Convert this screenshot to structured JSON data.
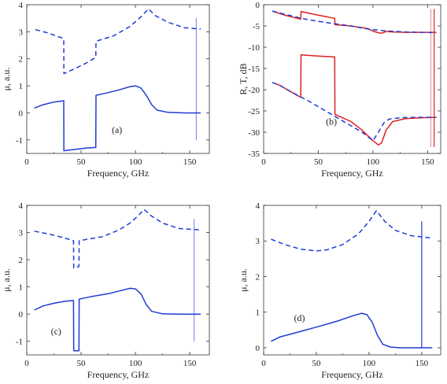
{
  "chart_data": [
    {
      "id": "a",
      "type": "line",
      "panel_label": "(a)",
      "xlabel": "Frequency, GHz",
      "ylabel": "μ, a.u.",
      "xlim": [
        0,
        168
      ],
      "ylim": [
        -1.5,
        4
      ],
      "xticks": [
        0,
        50,
        100,
        150
      ],
      "yticks": [
        -1,
        0,
        1,
        2,
        3,
        4
      ],
      "label_at": [
        83,
        -0.75
      ],
      "series": [
        {
          "color": "#1f3bd4",
          "dash": true,
          "x": [
            8,
            20,
            34,
            34.2,
            45,
            55,
            63.5,
            63.7,
            80,
            95,
            105,
            112,
            118,
            130,
            145,
            160
          ],
          "y": [
            3.08,
            2.95,
            2.75,
            1.45,
            1.65,
            1.85,
            2.05,
            2.65,
            2.85,
            3.2,
            3.55,
            3.85,
            3.6,
            3.35,
            3.15,
            3.1
          ]
        },
        {
          "color": "#1f3bd4",
          "dash": false,
          "x": [
            7,
            15,
            25,
            34,
            34.2,
            45,
            55,
            63.5,
            63.7,
            75,
            85,
            95,
            100,
            105,
            110,
            115,
            120,
            130,
            145,
            160
          ],
          "y": [
            0.18,
            0.3,
            0.4,
            0.45,
            -1.4,
            -1.35,
            -1.3,
            -1.28,
            0.65,
            0.75,
            0.85,
            0.97,
            1.0,
            0.92,
            0.65,
            0.3,
            0.1,
            0.02,
            0.0,
            0.0
          ]
        }
      ],
      "vlines": [
        {
          "x": 156,
          "y0": -1.0,
          "y1": 3.5,
          "color": "#8894e6"
        }
      ]
    },
    {
      "id": "b",
      "type": "line",
      "panel_label": "(b)",
      "xlabel": "Frequency, GHz",
      "ylabel": "R, T, dB",
      "xlim": [
        0,
        162
      ],
      "ylim": [
        -35,
        0
      ],
      "xticks": [
        0,
        50,
        100,
        150
      ],
      "yticks": [
        -35,
        -30,
        -25,
        -20,
        -15,
        -10,
        -5,
        0
      ],
      "label_at": [
        62,
        -28.2
      ],
      "series": [
        {
          "color": "#e02020",
          "dash": false,
          "x": [
            8,
            20,
            34,
            34.2,
            45,
            55,
            65,
            65.2,
            80,
            95,
            100,
            105,
            108,
            112,
            118,
            130,
            145,
            158
          ],
          "y": [
            -1.5,
            -2.5,
            -3.4,
            -1.6,
            -2.2,
            -2.7,
            -3.2,
            -4.7,
            -5.0,
            -5.6,
            -6.2,
            -6.6,
            -6.7,
            -6.3,
            -6.4,
            -6.5,
            -6.5,
            -6.5
          ]
        },
        {
          "color": "#1f3bd4",
          "dash": true,
          "x": [
            8,
            20,
            40,
            60,
            80,
            95,
            105,
            115,
            130,
            145,
            158
          ],
          "y": [
            -1.5,
            -2.3,
            -3.5,
            -4.3,
            -5.0,
            -5.7,
            -6.0,
            -6.2,
            -6.4,
            -6.5,
            -6.6
          ]
        },
        {
          "color": "#e02020",
          "dash": false,
          "x": [
            8,
            15,
            25,
            34,
            34.2,
            50,
            65,
            65.2,
            80,
            90,
            100,
            105,
            108,
            112,
            118,
            130,
            145,
            158
          ],
          "y": [
            -18.3,
            -19.0,
            -20.5,
            -21.8,
            -11.8,
            -12.1,
            -12.3,
            -25.8,
            -27.5,
            -29.5,
            -32.0,
            -33.0,
            -32.5,
            -29.5,
            -27.5,
            -26.8,
            -26.6,
            -26.5
          ]
        },
        {
          "color": "#1f3bd4",
          "dash": true,
          "x": [
            8,
            15,
            25,
            40,
            60,
            80,
            90,
            100,
            105,
            110,
            115,
            125,
            140,
            158
          ],
          "y": [
            -18.3,
            -19.0,
            -20.5,
            -22.5,
            -25.5,
            -28.5,
            -30.0,
            -32.0,
            -30.0,
            -27.8,
            -26.9,
            -26.6,
            -26.5,
            -26.5
          ]
        }
      ],
      "vlines": [
        {
          "x": 153,
          "y0": -33.5,
          "y1": -1.0,
          "color": "#e89a9a"
        },
        {
          "x": 156,
          "y0": -33.5,
          "y1": -1.0,
          "color": "#e02020"
        }
      ]
    },
    {
      "id": "c",
      "type": "line",
      "panel_label": "(c)",
      "xlabel": "Frequency, GHz",
      "ylabel": "μ, a.u.",
      "xlim": [
        0,
        168
      ],
      "ylim": [
        -1.5,
        4
      ],
      "xticks": [
        0,
        50,
        100,
        150
      ],
      "yticks": [
        -1,
        0,
        1,
        2,
        3,
        4
      ],
      "label_at": [
        27,
        -0.75
      ],
      "series": [
        {
          "color": "#1f3bd4",
          "dash": true,
          "x": [
            7,
            20,
            35,
            43,
            43.2,
            48,
            48.2,
            55,
            70,
            85,
            95,
            102,
            108,
            115,
            125,
            140,
            160
          ],
          "y": [
            3.05,
            2.95,
            2.8,
            2.7,
            1.7,
            1.75,
            2.7,
            2.75,
            2.85,
            3.1,
            3.35,
            3.6,
            3.85,
            3.6,
            3.35,
            3.15,
            3.1
          ]
        },
        {
          "color": "#1f3bd4",
          "dash": false,
          "x": [
            7,
            15,
            25,
            35,
            43,
            43.2,
            48,
            48.2,
            60,
            75,
            85,
            95,
            100,
            105,
            110,
            115,
            125,
            140,
            160
          ],
          "y": [
            0.15,
            0.3,
            0.4,
            0.47,
            0.5,
            -1.35,
            -1.35,
            0.55,
            0.65,
            0.75,
            0.85,
            0.95,
            0.93,
            0.75,
            0.35,
            0.1,
            0.01,
            0.0,
            0.0
          ]
        }
      ],
      "vlines": [
        {
          "x": 154,
          "y0": -1.0,
          "y1": 3.5,
          "color": "#8894e6"
        }
      ]
    },
    {
      "id": "d",
      "type": "line",
      "panel_label": "(d)",
      "xlabel": "Frequency, GHz",
      "ylabel": "μ, a.u.",
      "xlim": [
        0,
        168
      ],
      "ylim": [
        -0.2,
        4
      ],
      "xticks": [
        0,
        50,
        100,
        150
      ],
      "yticks": [
        0,
        1,
        2,
        3,
        4
      ],
      "label_at": [
        34,
        0.75
      ],
      "series": [
        {
          "color": "#1f3bd4",
          "dash": true,
          "x": [
            7,
            20,
            35,
            50,
            60,
            75,
            90,
            100,
            107,
            115,
            125,
            140,
            160
          ],
          "y": [
            3.05,
            2.9,
            2.77,
            2.72,
            2.75,
            2.9,
            3.2,
            3.55,
            3.85,
            3.55,
            3.3,
            3.15,
            3.08
          ]
        },
        {
          "color": "#1f3bd4",
          "dash": false,
          "x": [
            7,
            15,
            30,
            50,
            70,
            85,
            93,
            98,
            103,
            108,
            113,
            120,
            130,
            145,
            160
          ],
          "y": [
            0.18,
            0.3,
            0.42,
            0.58,
            0.75,
            0.9,
            0.97,
            0.93,
            0.72,
            0.35,
            0.1,
            0.02,
            0.0,
            0.0,
            0.0
          ]
        }
      ],
      "vlines": [
        {
          "x": 150,
          "y0": 0.0,
          "y1": 3.55,
          "color": "#1f3bd4"
        }
      ]
    }
  ]
}
